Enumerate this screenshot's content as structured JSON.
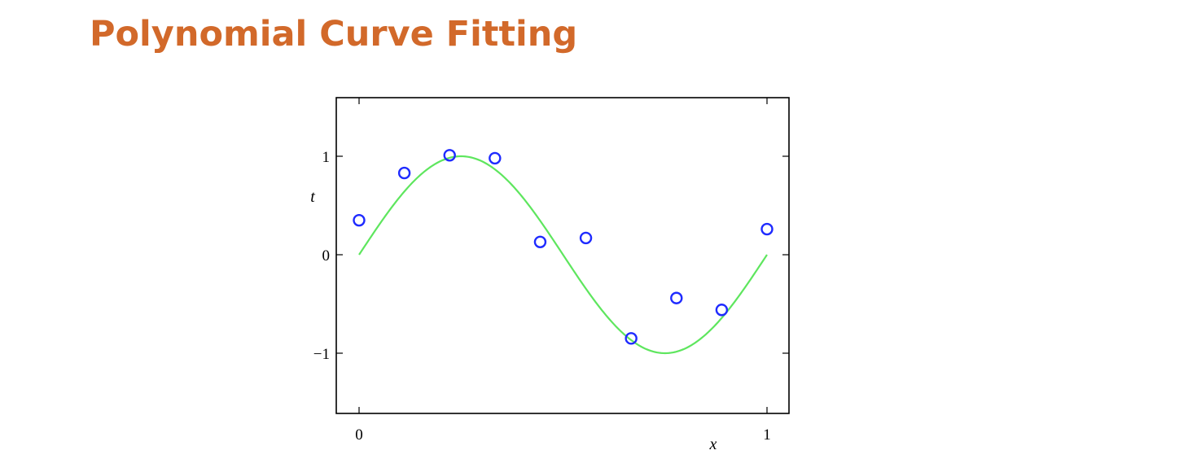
{
  "slide": {
    "title": "Polynomial Curve Fitting"
  },
  "chart_data": {
    "type": "scatter",
    "title": "",
    "xlabel": "x",
    "ylabel": "t",
    "xlim": [
      0,
      1
    ],
    "ylim": [
      -1.6,
      1.6
    ],
    "xticks": [
      0,
      1
    ],
    "xtick_labels": [
      "0",
      "1"
    ],
    "yticks": [
      -1,
      0,
      1
    ],
    "ytick_labels": [
      "−1",
      "0",
      "1"
    ],
    "grid": false,
    "legend": "none",
    "series": [
      {
        "kind": "points",
        "marker": "open-circle",
        "color": "#1f2bff",
        "x": [
          0,
          0.111,
          0.222,
          0.333,
          0.444,
          0.556,
          0.667,
          0.778,
          0.889,
          1.0
        ],
        "y": [
          0.35,
          0.83,
          1.01,
          0.98,
          0.13,
          0.17,
          -0.85,
          -0.44,
          -0.56,
          0.26
        ]
      },
      {
        "kind": "curve",
        "function": "sin(2*pi*x)",
        "color": "#5ee65e"
      }
    ]
  }
}
